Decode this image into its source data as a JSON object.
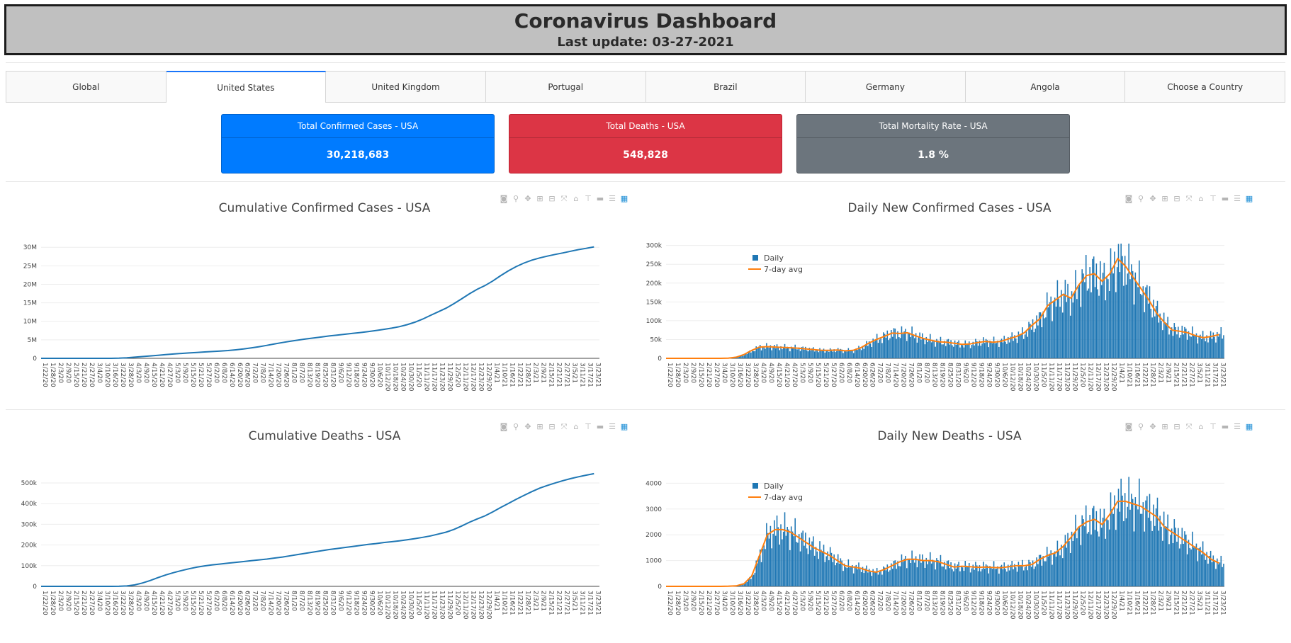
{
  "header": {
    "title": "Coronavirus Dashboard",
    "subtitle": "Last update: 03-27-2021"
  },
  "tabs": [
    {
      "label": "Global",
      "active": false
    },
    {
      "label": "United States",
      "active": true
    },
    {
      "label": "United Kingdom",
      "active": false
    },
    {
      "label": "Portugal",
      "active": false
    },
    {
      "label": "Brazil",
      "active": false
    },
    {
      "label": "Germany",
      "active": false
    },
    {
      "label": "Angola",
      "active": false
    },
    {
      "label": "Choose a Country",
      "active": false
    }
  ],
  "cards": [
    {
      "title": "Total Confirmed Cases - USA",
      "value": "30,218,683",
      "color": "#007bff"
    },
    {
      "title": "Total Deaths - USA",
      "value": "548,828",
      "color": "#dc3545"
    },
    {
      "title": "Total Mortality Rate - USA",
      "value": "1.8 %",
      "color": "#6c757d"
    }
  ],
  "colors": {
    "series": "#1f77b4",
    "avg": "#ff7f0e",
    "grid": "#eeeeee"
  },
  "modebar_icons": [
    "camera-icon",
    "zoom-icon",
    "pan-icon",
    "zoom-in-icon",
    "zoom-out-icon",
    "autoscale-icon",
    "reset-axes-icon",
    "spike-lines-icon",
    "hover-closest-icon",
    "hover-compare-icon",
    "plotly-logo-icon"
  ],
  "x_ticks": [
    "1/22/20",
    "1/28/20",
    "2/3/20",
    "2/9/20",
    "2/15/20",
    "2/21/20",
    "2/27/20",
    "3/4/20",
    "3/10/20",
    "3/16/20",
    "3/22/20",
    "3/28/20",
    "4/3/20",
    "4/9/20",
    "4/15/20",
    "4/21/20",
    "4/27/20",
    "5/3/20",
    "5/9/20",
    "5/15/20",
    "5/21/20",
    "5/27/20",
    "6/2/20",
    "6/8/20",
    "6/14/20",
    "6/20/20",
    "6/26/20",
    "7/2/20",
    "7/8/20",
    "7/14/20",
    "7/20/20",
    "7/26/20",
    "8/1/20",
    "8/7/20",
    "8/13/20",
    "8/19/20",
    "8/25/20",
    "8/31/20",
    "9/6/20",
    "9/12/20",
    "9/18/20",
    "9/24/20",
    "9/30/20",
    "10/6/20",
    "10/12/20",
    "10/18/20",
    "10/24/20",
    "10/30/20",
    "11/5/20",
    "11/11/20",
    "11/17/20",
    "11/23/20",
    "11/29/20",
    "12/5/20",
    "12/11/20",
    "12/17/20",
    "12/23/20",
    "12/29/20",
    "1/4/21",
    "1/10/21",
    "1/16/21",
    "1/22/21",
    "1/28/21",
    "2/3/21",
    "2/9/21",
    "2/15/21",
    "2/21/21",
    "2/27/21",
    "3/5/21",
    "3/11/21",
    "3/17/21",
    "3/23/21"
  ],
  "chart_data": [
    {
      "type": "line",
      "title": "Cumulative Confirmed Cases - USA",
      "yticks": [
        "0",
        "5M",
        "10M",
        "15M",
        "20M",
        "25M",
        "30M"
      ],
      "ylim": [
        0,
        31000000
      ],
      "x_range": [
        "1/22/20",
        "3/27/21"
      ],
      "series": [
        {
          "values_by_tick": [
            0,
            0,
            0,
            0,
            0,
            0,
            0,
            100,
            1000,
            6000,
            40000,
            140000,
            300000,
            480000,
            660000,
            830000,
            1000000,
            1170000,
            1320000,
            1460000,
            1590000,
            1720000,
            1840000,
            1970000,
            2100000,
            2290000,
            2530000,
            2810000,
            3130000,
            3510000,
            3910000,
            4260000,
            4620000,
            4930000,
            5250000,
            5500000,
            5760000,
            6040000,
            6280000,
            6500000,
            6730000,
            6970000,
            7240000,
            7520000,
            7820000,
            8150000,
            8550000,
            9080000,
            9760000,
            10610000,
            11600000,
            12580000,
            13540000,
            14750000,
            16070000,
            17440000,
            18650000,
            19650000,
            20900000,
            22320000,
            23640000,
            24780000,
            25730000,
            26520000,
            27110000,
            27620000,
            28070000,
            28480000,
            28930000,
            29380000,
            29720000,
            30120000
          ]
        }
      ]
    },
    {
      "type": "bar",
      "title": "Daily New Confirmed Cases - USA",
      "yticks": [
        "0",
        "50k",
        "100k",
        "150k",
        "200k",
        "250k",
        "300k"
      ],
      "ylim": [
        0,
        305000
      ],
      "legend": [
        "Daily",
        "7-day avg"
      ],
      "legend_position": "top-left",
      "x_range": [
        "1/22/20",
        "3/27/21"
      ],
      "series": [
        {
          "name": "Daily",
          "values_by_tick": [
            0,
            0,
            0,
            0,
            0,
            0,
            0,
            50,
            500,
            3000,
            10000,
            21000,
            30000,
            31000,
            30000,
            29000,
            28000,
            27000,
            25000,
            23000,
            21000,
            21000,
            22000,
            20000,
            21000,
            28000,
            40000,
            50000,
            58000,
            67000,
            66000,
            68000,
            60000,
            53000,
            48000,
            44000,
            43000,
            40000,
            37000,
            38000,
            42000,
            45000,
            43000,
            45000,
            52000,
            58000,
            68000,
            88000,
            105000,
            140000,
            155000,
            170000,
            160000,
            195000,
            220000,
            225000,
            205000,
            225000,
            265000,
            245000,
            215000,
            185000,
            155000,
            120000,
            95000,
            75000,
            72000,
            68000,
            60000,
            55000,
            58000,
            63000
          ]
        },
        {
          "name": "7-day avg",
          "values_by_tick": [
            0,
            0,
            0,
            0,
            0,
            0,
            0,
            50,
            500,
            3000,
            10000,
            21000,
            30000,
            31000,
            30000,
            29000,
            28000,
            27000,
            25000,
            23000,
            21000,
            21000,
            22000,
            20000,
            21000,
            28000,
            40000,
            50000,
            58000,
            67000,
            66000,
            68000,
            60000,
            53000,
            48000,
            44000,
            43000,
            40000,
            37000,
            38000,
            42000,
            45000,
            43000,
            45000,
            52000,
            58000,
            68000,
            88000,
            105000,
            140000,
            155000,
            170000,
            160000,
            195000,
            220000,
            225000,
            205000,
            225000,
            265000,
            245000,
            215000,
            185000,
            155000,
            120000,
            95000,
            75000,
            72000,
            68000,
            60000,
            55000,
            58000,
            63000
          ]
        }
      ]
    },
    {
      "type": "line",
      "title": "Cumulative Deaths - USA",
      "yticks": [
        "0",
        "100k",
        "200k",
        "300k",
        "400k",
        "500k"
      ],
      "ylim": [
        0,
        555000
      ],
      "x_range": [
        "1/22/20",
        "3/27/21"
      ],
      "series": [
        {
          "values_by_tick": [
            0,
            0,
            0,
            0,
            0,
            0,
            0,
            10,
            30,
            100,
            400,
            2000,
            7000,
            16000,
            28000,
            42000,
            55000,
            66000,
            76000,
            85000,
            93000,
            99000,
            104000,
            108000,
            112000,
            116000,
            120000,
            124000,
            128000,
            132000,
            137000,
            142000,
            148000,
            154000,
            160000,
            166000,
            172000,
            178000,
            183000,
            188000,
            193000,
            198000,
            203000,
            207000,
            212000,
            216000,
            220000,
            225000,
            231000,
            237000,
            244000,
            253000,
            262000,
            275000,
            292000,
            310000,
            326000,
            341000,
            360000,
            381000,
            401000,
            421000,
            440000,
            458000,
            475000,
            488000,
            500000,
            511000,
            521000,
            530000,
            538000,
            545000
          ]
        }
      ]
    },
    {
      "type": "bar",
      "title": "Daily New Deaths - USA",
      "yticks": [
        "0",
        "1000",
        "2000",
        "3000",
        "4000"
      ],
      "ylim": [
        0,
        4450
      ],
      "legend": [
        "Daily",
        "7-day avg"
      ],
      "legend_position": "top-left",
      "x_range": [
        "1/22/20",
        "3/27/21"
      ],
      "series": [
        {
          "name": "Daily",
          "values_by_tick": [
            0,
            0,
            0,
            0,
            0,
            0,
            0,
            0,
            5,
            20,
            100,
            400,
            1200,
            2000,
            2200,
            2200,
            2100,
            1900,
            1700,
            1500,
            1350,
            1200,
            1000,
            800,
            750,
            700,
            600,
            550,
            650,
            800,
            950,
            1050,
            1050,
            1000,
            1000,
            950,
            850,
            750,
            780,
            760,
            740,
            750,
            730,
            720,
            760,
            800,
            800,
            850,
            1050,
            1200,
            1300,
            1550,
            1900,
            2300,
            2500,
            2600,
            2400,
            2800,
            3300,
            3300,
            3200,
            3100,
            2900,
            2700,
            2300,
            2100,
            1900,
            1700,
            1500,
            1300,
            1050,
            900
          ]
        },
        {
          "name": "7-day avg",
          "values_by_tick": [
            0,
            0,
            0,
            0,
            0,
            0,
            0,
            0,
            5,
            20,
            100,
            400,
            1200,
            2000,
            2200,
            2200,
            2100,
            1900,
            1700,
            1500,
            1350,
            1200,
            1000,
            800,
            750,
            700,
            600,
            550,
            650,
            800,
            950,
            1050,
            1050,
            1000,
            1000,
            950,
            850,
            750,
            780,
            760,
            740,
            750,
            730,
            720,
            760,
            800,
            800,
            850,
            1050,
            1200,
            1300,
            1550,
            1900,
            2300,
            2500,
            2600,
            2400,
            2800,
            3300,
            3300,
            3200,
            3100,
            2900,
            2700,
            2300,
            2100,
            1900,
            1700,
            1500,
            1300,
            1050,
            900
          ]
        }
      ]
    }
  ]
}
